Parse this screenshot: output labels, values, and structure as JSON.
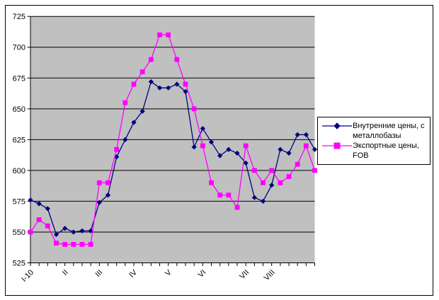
{
  "chart_data": {
    "type": "line",
    "title": "",
    "xlabel": "",
    "ylabel": "",
    "n_points": 34,
    "ylim": [
      525,
      725
    ],
    "y_step": 25,
    "grid": true,
    "plot_bg": "#c0c0c0",
    "grid_color": "#000000",
    "y_tick_labels": [
      "525",
      "550",
      "575",
      "600",
      "625",
      "650",
      "675",
      "700",
      "725"
    ],
    "x_tick_labels": [
      "I-10",
      "II",
      "III",
      "IV",
      "V",
      "VI",
      "VII",
      "VIII"
    ],
    "x_tick_label_indices": [
      0,
      4,
      8,
      12,
      16,
      20,
      25,
      28
    ],
    "legend_position": "right",
    "series": [
      {
        "name": "Внутренние цены, с металлобазы",
        "color": "#000080",
        "marker": "diamond",
        "values": [
          576,
          573,
          569,
          548,
          553,
          550,
          551,
          551,
          574,
          580,
          611,
          625,
          639,
          648,
          672,
          667,
          667,
          670,
          664,
          619,
          634,
          623,
          612,
          617,
          614,
          606,
          578,
          575,
          588,
          617,
          614,
          629,
          629,
          617
        ]
      },
      {
        "name": "Экспортные цены, FOB",
        "color": "#ff00ff",
        "marker": "square",
        "values": [
          550,
          560,
          555,
          541,
          540,
          540,
          540,
          540,
          590,
          590,
          617,
          655,
          670,
          680,
          690,
          710,
          710,
          690,
          670,
          650,
          620,
          590,
          580,
          580,
          570,
          620,
          600,
          590,
          600,
          590,
          595,
          605,
          620,
          600
        ]
      }
    ]
  },
  "legend": {
    "items": [
      {
        "label": "Внутренние цены, с металлобазы"
      },
      {
        "label": "Экспортные цены, FOB"
      }
    ]
  }
}
